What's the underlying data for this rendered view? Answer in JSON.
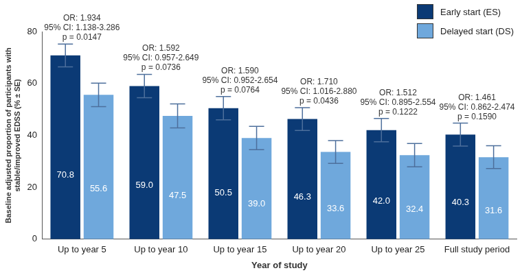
{
  "chart_data": {
    "type": "bar",
    "categories": [
      "Up to year 5",
      "Up to year 10",
      "Up to year 15",
      "Up to year 20",
      "Up to year 25",
      "Full study period"
    ],
    "series": [
      {
        "name": "Early start (ES)",
        "color": "#0b3a75",
        "values": [
          70.8,
          59.0,
          50.5,
          46.3,
          42.0,
          40.3
        ],
        "value_labels": [
          "70.8",
          "59.0",
          "50.5",
          "46.3",
          "42.0",
          "40.3"
        ],
        "se": [
          4.4,
          4.5,
          4.5,
          4.4,
          4.5,
          4.4
        ]
      },
      {
        "name": "Delayed start (DS)",
        "color": "#6fa8dc",
        "values": [
          55.6,
          47.5,
          39.0,
          33.6,
          32.4,
          31.6
        ],
        "value_labels": [
          "55.6",
          "47.5",
          "39.0",
          "33.6",
          "32.4",
          "31.6"
        ],
        "se": [
          4.5,
          4.6,
          4.5,
          4.4,
          4.5,
          4.4
        ]
      }
    ],
    "x_label": "Year of study",
    "y_label": [
      "Baseline adjusted proportion of participants with",
      "stable/improved EDSS (% ± SE)"
    ],
    "ylim": [
      0,
      80
    ],
    "yticks": [
      0,
      20,
      40,
      60,
      80
    ],
    "grid": false,
    "legend": "top-right",
    "data_labels": true,
    "annotations": [
      {
        "category": "Up to year 5",
        "lines": [
          "OR: 1.934",
          "95% CI: 1.138-3.286",
          "p = 0.0147"
        ]
      },
      {
        "category": "Up to year 10",
        "lines": [
          "OR: 1.592",
          "95% CI: 0.957-2.649",
          "p = 0.0736"
        ]
      },
      {
        "category": "Up to year 15",
        "lines": [
          "OR: 1.590",
          "95% CI: 0.952-2.654",
          "p = 0.0764"
        ]
      },
      {
        "category": "Up to year 20",
        "lines": [
          "OR: 1.710",
          "95% CI: 1.016-2.880",
          "p = 0.0436"
        ]
      },
      {
        "category": "Up to year 25",
        "lines": [
          "OR: 1.512",
          "95% CI: 0.895-2.554",
          "p = 0.1222"
        ]
      },
      {
        "category": "Full study period",
        "lines": [
          "OR: 1.461",
          "95% CI: 0.862-2.474",
          "p = 0.1590"
        ]
      }
    ]
  }
}
